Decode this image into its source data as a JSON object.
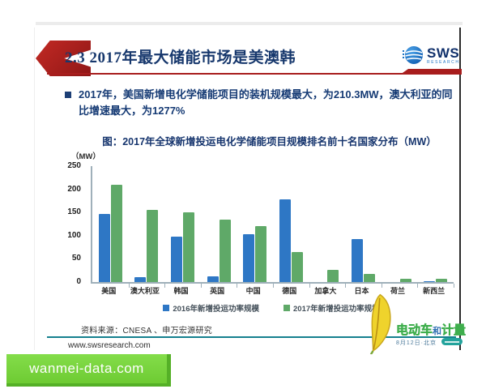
{
  "header": {
    "title": "2.3 2017年最大储能市场是美澳韩",
    "logo_text": "SWS",
    "logo_sub": "RESEARCH"
  },
  "bullet": {
    "text": "2017年，美国新增电化学储能项目的装机规模最大，为210.3MW，澳大利亚的同比增速最大，为1277%"
  },
  "chart_data": {
    "type": "bar",
    "title": "图：2017年全球新增投运电化学储能项目规模排名前十名国家分布（MW）",
    "unit_label": "（MW）",
    "categories": [
      "美国",
      "澳大利亚",
      "韩国",
      "英国",
      "中国",
      "德国",
      "加拿大",
      "日本",
      "荷兰",
      "新西兰"
    ],
    "series": [
      {
        "name": "2016年新增投运功率规模",
        "color": "#2e77c5",
        "values": [
          147,
          11,
          98,
          12,
          104,
          179,
          0,
          92,
          0,
          2
        ]
      },
      {
        "name": "2017年新增投运功率规模",
        "color": "#5fa968",
        "values": [
          210.3,
          155,
          150,
          134,
          121,
          65,
          27,
          18,
          7,
          7
        ]
      }
    ],
    "xlabel": "",
    "ylabel": "MW",
    "ylim": [
      0,
      250
    ],
    "yticks": [
      0,
      50,
      100,
      150,
      200,
      250
    ],
    "grid": false,
    "legend_position": "bottom"
  },
  "footer": {
    "source": "资料来源：CNESA 、申万宏源研究",
    "website": "www.swsresearch.com"
  },
  "watermark": {
    "brand_1": "电动车",
    "brand_2": "和",
    "brand_3": "计量",
    "subtitle": "8月12日·北京"
  },
  "banner": {
    "text": "wanmei-data.com"
  }
}
